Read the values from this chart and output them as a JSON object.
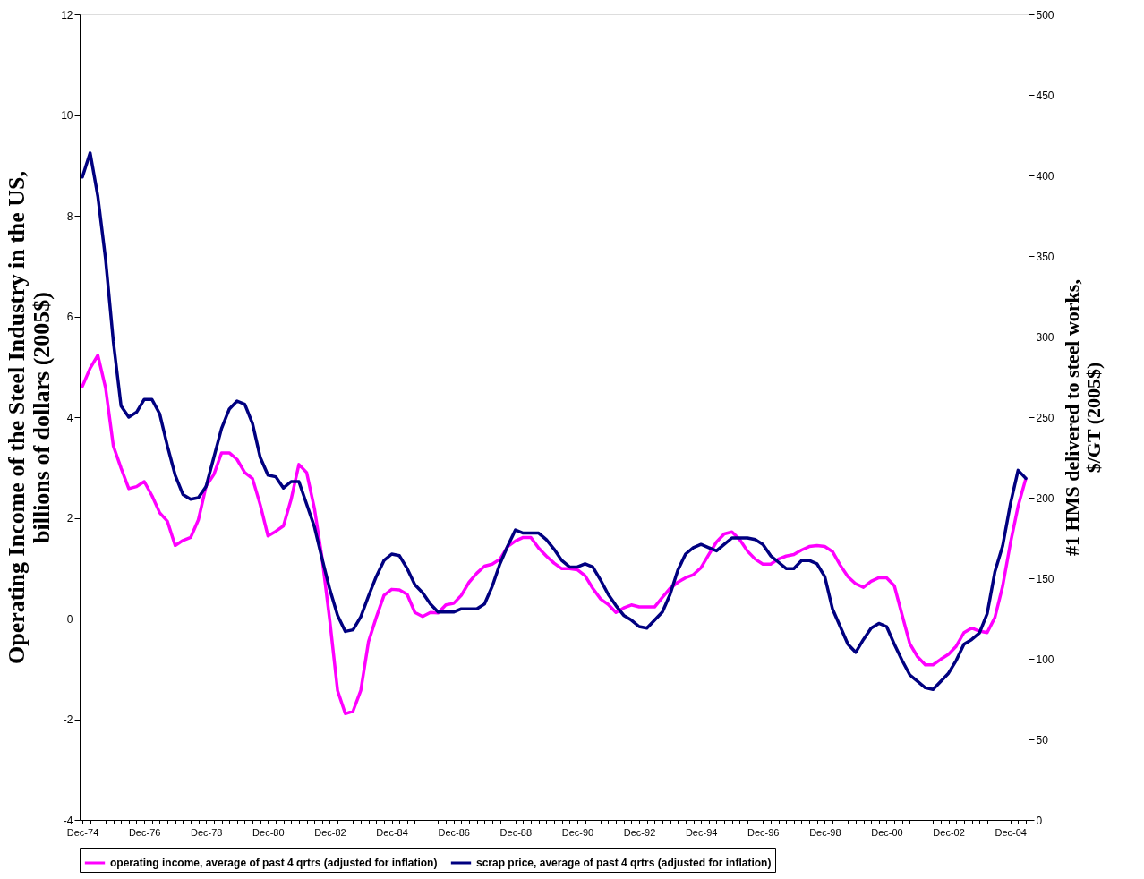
{
  "chart_data": {
    "type": "line",
    "ylabel": "Operating Income of the Steel Industry in the US, billions of dollars (2005$)",
    "y2label": "#1 HMS delivered to steel works, $/GT (2005$)",
    "categories": [
      "Dec-74",
      null,
      null,
      null,
      null,
      null,
      null,
      null,
      "Dec-76",
      null,
      null,
      null,
      null,
      null,
      null,
      null,
      "Dec-78",
      null,
      null,
      null,
      null,
      null,
      null,
      null,
      "Dec-80",
      null,
      null,
      null,
      null,
      null,
      null,
      null,
      "Dec-82",
      null,
      null,
      null,
      null,
      null,
      null,
      null,
      "Dec-84",
      null,
      null,
      null,
      null,
      null,
      null,
      null,
      "Dec-86",
      null,
      null,
      null,
      null,
      null,
      null,
      null,
      "Dec-88",
      null,
      null,
      null,
      null,
      null,
      null,
      null,
      "Dec-90",
      null,
      null,
      null,
      null,
      null,
      null,
      null,
      "Dec-92",
      null,
      null,
      null,
      null,
      null,
      null,
      null,
      "Dec-94",
      null,
      null,
      null,
      null,
      null,
      null,
      null,
      "Dec-96",
      null,
      null,
      null,
      null,
      null,
      null,
      null,
      "Dec-98",
      null,
      null,
      null,
      null,
      null,
      null,
      null,
      "Dec-00",
      null,
      null,
      null,
      null,
      null,
      null,
      null,
      "Dec-02",
      null,
      null,
      null,
      null,
      null,
      null,
      null,
      "Dec-04",
      null,
      null
    ],
    "series": [
      {
        "name": "operating income, average of past 4 qrtrs (adjusted for inflation)",
        "color": "#ff00ff",
        "values": [
          4.61,
          4.97,
          5.23,
          4.58,
          3.43,
          2.99,
          2.58,
          2.62,
          2.72,
          2.44,
          2.1,
          1.93,
          1.45,
          1.55,
          1.61,
          1.96,
          2.63,
          2.86,
          3.29,
          3.29,
          3.16,
          2.9,
          2.78,
          2.26,
          1.64,
          1.73,
          1.84,
          2.37,
          3.06,
          2.9,
          2.19,
          1.2,
          -0.05,
          -1.43,
          -1.89,
          -1.84,
          -1.43,
          -0.46,
          0.02,
          0.46,
          0.58,
          0.57,
          0.48,
          0.12,
          0.04,
          0.12,
          0.11,
          0.27,
          0.3,
          0.46,
          0.72,
          0.9,
          1.04,
          1.08,
          1.18,
          1.43,
          1.54,
          1.61,
          1.61,
          1.4,
          1.24,
          1.1,
          0.99,
          0.99,
          0.97,
          0.85,
          0.6,
          0.39,
          0.28,
          0.12,
          0.21,
          0.27,
          0.23,
          0.23,
          0.23,
          0.42,
          0.6,
          0.72,
          0.81,
          0.87,
          1.01,
          1.27,
          1.52,
          1.68,
          1.72,
          1.57,
          1.34,
          1.18,
          1.08,
          1.08,
          1.18,
          1.24,
          1.27,
          1.36,
          1.43,
          1.45,
          1.43,
          1.33,
          1.06,
          0.83,
          0.69,
          0.62,
          0.74,
          0.81,
          0.81,
          0.65,
          0.07,
          -0.5,
          -0.76,
          -0.92,
          -0.92,
          -0.81,
          -0.71,
          -0.55,
          -0.28,
          -0.19,
          -0.25,
          -0.28,
          0.02,
          0.64,
          1.49,
          2.23,
          2.78
        ]
      },
      {
        "name": "scrap price, average of past 4 qrtrs (adjusted for inflation)",
        "color": "#000080",
        "axis": "y2",
        "values": [
          399,
          414,
          387,
          348,
          297,
          257,
          250,
          253,
          261,
          261,
          252,
          232,
          214,
          202,
          199,
          200,
          207,
          225,
          243,
          255,
          260,
          258,
          246,
          225,
          214,
          213,
          206,
          210,
          210,
          196,
          182,
          162,
          143,
          127,
          117,
          118,
          126,
          139,
          151,
          161,
          165,
          164,
          156,
          146,
          141,
          134,
          129,
          129,
          129,
          131,
          131,
          131,
          134,
          145,
          159,
          170,
          180,
          178,
          178,
          178,
          174,
          168,
          161,
          157,
          157,
          159,
          157,
          149,
          140,
          133,
          127,
          124,
          120,
          119,
          124,
          129,
          140,
          155,
          165,
          169,
          171,
          169,
          167,
          171,
          175,
          175,
          175,
          174,
          171,
          164,
          160,
          156,
          156,
          161,
          161,
          159,
          151,
          131,
          120,
          109,
          104,
          112,
          119,
          122,
          120,
          109,
          99,
          90,
          86,
          82,
          81,
          86,
          91,
          99,
          109,
          112,
          116,
          128,
          154,
          170,
          196,
          217,
          212
        ]
      }
    ],
    "ylim": [
      -4,
      12
    ],
    "yticks": [
      -4,
      -2,
      0,
      2,
      4,
      6,
      8,
      10,
      12
    ],
    "y2lim": [
      0,
      500
    ],
    "y2ticks": [
      0,
      50,
      100,
      150,
      200,
      250,
      300,
      350,
      400,
      450,
      500
    ],
    "legend": "bottom",
    "grid": false
  }
}
